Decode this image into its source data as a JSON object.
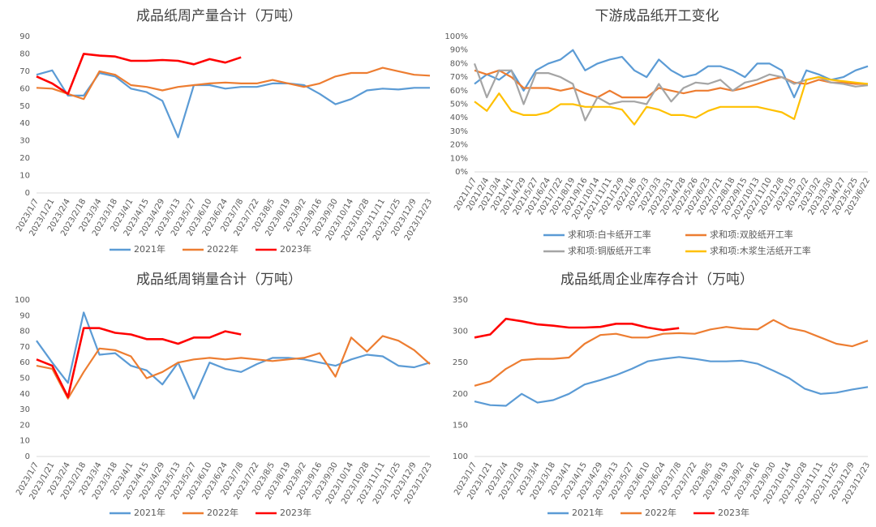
{
  "chart_data": [
    {
      "type": "line",
      "title": "成品纸周产量合计（万吨）",
      "legend": "bottom",
      "grid": false,
      "categories": [
        "2023/1/7",
        "2023/1/21",
        "2023/2/4",
        "2023/2/18",
        "2023/3/4",
        "2023/3/18",
        "2023/4/1",
        "2023/4/15",
        "2023/4/29",
        "2023/5/13",
        "2023/5/27",
        "2023/6/10",
        "2023/6/24",
        "2023/7/8",
        "2023/7/22",
        "2023/8/5",
        "2023/8/19",
        "2023/9/2",
        "2023/9/16",
        "2023/9/30",
        "2023/10/14",
        "2023/10/28",
        "2023/11/11",
        "2023/11/25",
        "2023/12/9",
        "2023/12/23"
      ],
      "ylim": [
        0,
        90
      ],
      "yticks": [
        0,
        10,
        20,
        30,
        40,
        50,
        60,
        70,
        80,
        90
      ],
      "series": [
        {
          "name": "2021年",
          "color": "#5b9bd5",
          "values": [
            68,
            70.5,
            56,
            56,
            69,
            67,
            60,
            58,
            53,
            32,
            62,
            62,
            60,
            61,
            61,
            63,
            63,
            62,
            57,
            51,
            54,
            59,
            60,
            59.5,
            60.5,
            60.5
          ]
        },
        {
          "name": "2022年",
          "color": "#ed7d31",
          "values": [
            60.5,
            60,
            57,
            54,
            70,
            68,
            62,
            61,
            59,
            61,
            62,
            63,
            63.5,
            63,
            63,
            65,
            63,
            61,
            63,
            67,
            69,
            69,
            72,
            70,
            68,
            67.5
          ]
        },
        {
          "name": "2023年",
          "color": "#ff0000",
          "values": [
            67,
            63,
            57,
            80,
            79,
            78.5,
            76,
            76,
            76.5,
            76,
            74,
            77,
            75,
            78,
            null,
            null,
            null,
            null,
            null,
            null,
            null,
            null,
            null,
            null,
            null,
            null
          ]
        }
      ]
    },
    {
      "type": "line",
      "title": "下游成品纸开工变化",
      "legend": "bottom",
      "grid": false,
      "categories": [
        "2021/1/7",
        "2021/2/4",
        "2021/3/4",
        "2021/4/1",
        "2021/4/29",
        "2021/5/27",
        "2021/6/24",
        "2021/7/22",
        "2021/8/19",
        "2021/9/16",
        "2021/10/14",
        "2021/11/11",
        "2021/12/9",
        "2022/1/6",
        "2022/2/3",
        "2022/3/3",
        "2022/3/31",
        "2022/4/28",
        "2022/5/26",
        "2022/6/23",
        "2022/7/21",
        "2022/8/18",
        "2022/9/15",
        "2022/10/13",
        "2022/11/10",
        "2022/12/8",
        "2023/1/5",
        "2023/2/2",
        "2023/3/2",
        "2023/3/30",
        "2023/4/27",
        "2023/5/25",
        "2023/6/22"
      ],
      "ylim": [
        0,
        100
      ],
      "yticks": [
        {
          "value": 0,
          "label": "0%"
        },
        {
          "value": 10,
          "label": "10%"
        },
        {
          "value": 20,
          "label": "20%"
        },
        {
          "value": 30,
          "label": "30%"
        },
        {
          "value": 40,
          "label": "40%"
        },
        {
          "value": 50,
          "label": "50%"
        },
        {
          "value": 60,
          "label": "60%"
        },
        {
          "value": 70,
          "label": "70%"
        },
        {
          "value": 80,
          "label": "80%"
        },
        {
          "value": 90,
          "label": "90%"
        },
        {
          "value": 100,
          "label": "100%"
        }
      ],
      "series": [
        {
          "name": "求和项:白卡纸开工率",
          "color": "#5b9bd5",
          "values": [
            65,
            72,
            68,
            75,
            60,
            75,
            80,
            83,
            90,
            75,
            80,
            83,
            85,
            75,
            70,
            83,
            75,
            70,
            72,
            78,
            78,
            75,
            70,
            80,
            80,
            75,
            55,
            75,
            72,
            68,
            70,
            75,
            78
          ]
        },
        {
          "name": "求和项:双胶纸开工率",
          "color": "#ed7d31",
          "values": [
            75,
            72,
            75,
            70,
            62,
            62,
            62,
            60,
            62,
            58,
            55,
            60,
            55,
            55,
            55,
            62,
            60,
            58,
            60,
            60,
            62,
            60,
            62,
            65,
            68,
            70,
            66,
            65,
            68,
            66,
            66,
            65,
            65
          ]
        },
        {
          "name": "求和项:铜版纸开工率",
          "color": "#a5a5a5",
          "values": [
            80,
            55,
            75,
            75,
            50,
            73,
            73,
            70,
            65,
            38,
            55,
            50,
            52,
            52,
            50,
            65,
            52,
            62,
            66,
            65,
            68,
            60,
            66,
            68,
            72,
            70,
            65,
            68,
            70,
            66,
            65,
            63,
            64
          ]
        },
        {
          "name": "求和项:木浆生活纸开工率",
          "color": "#ffc000",
          "values": [
            52,
            45,
            58,
            45,
            42,
            42,
            44,
            50,
            50,
            48,
            48,
            48,
            46,
            35,
            48,
            46,
            42,
            42,
            40,
            45,
            48,
            48,
            48,
            48,
            46,
            44,
            39,
            68,
            70,
            68,
            67,
            66,
            65
          ]
        }
      ]
    },
    {
      "type": "line",
      "title": "成品纸周销量合计（万吨）",
      "legend": "bottom",
      "grid": false,
      "categories": [
        "2023/1/7",
        "2023/1/21",
        "2023/2/4",
        "2023/2/18",
        "2023/3/4",
        "2023/3/18",
        "2023/4/1",
        "2023/4/15",
        "2023/4/29",
        "2023/5/13",
        "2023/5/27",
        "2023/6/10",
        "2023/6/24",
        "2023/7/8",
        "2023/7/22",
        "2023/8/5",
        "2023/8/19",
        "2023/9/2",
        "2023/9/16",
        "2023/9/30",
        "2023/10/14",
        "2023/10/28",
        "2023/11/11",
        "2023/11/25",
        "2023/12/9",
        "2023/12/23"
      ],
      "ylim": [
        0,
        100
      ],
      "yticks": [
        0,
        10,
        20,
        30,
        40,
        50,
        60,
        70,
        80,
        90,
        100
      ],
      "series": [
        {
          "name": "2021年",
          "color": "#5b9bd5",
          "values": [
            74,
            60,
            47,
            92,
            65,
            66,
            58,
            55,
            46,
            60,
            37,
            60,
            56,
            54,
            59,
            63,
            63,
            62,
            60,
            58,
            62,
            65,
            64,
            58,
            57,
            60
          ]
        },
        {
          "name": "2022年",
          "color": "#ed7d31",
          "values": [
            58,
            56,
            37,
            54,
            69,
            68,
            64,
            50,
            54,
            60,
            62,
            63,
            62,
            63,
            62,
            61,
            62,
            63,
            66,
            51,
            76,
            67,
            77,
            74,
            68,
            59
          ]
        },
        {
          "name": "2023年",
          "color": "#ff0000",
          "values": [
            62,
            58,
            38,
            82,
            82,
            79,
            78,
            75,
            75,
            72,
            76,
            76,
            80,
            78,
            null,
            null,
            null,
            null,
            null,
            null,
            null,
            null,
            null,
            null,
            null,
            null
          ]
        }
      ]
    },
    {
      "type": "line",
      "title": "成品纸周企业库存合计（万吨）",
      "legend": "bottom",
      "grid": false,
      "categories": [
        "2023/1/7",
        "2023/1/21",
        "2023/2/4",
        "2023/2/18",
        "2023/3/4",
        "2023/3/18",
        "2023/4/1",
        "2023/4/15",
        "2023/4/29",
        "2023/5/13",
        "2023/5/27",
        "2023/6/10",
        "2023/6/24",
        "2023/7/8",
        "2023/7/22",
        "2023/8/5",
        "2023/8/19",
        "2023/9/2",
        "2023/9/16",
        "2023/9/30",
        "2023/10/14",
        "2023/10/28",
        "2023/11/11",
        "2023/11/25",
        "2023/12/9",
        "2023/12/23"
      ],
      "ylim": [
        100,
        350
      ],
      "yticks": [
        100,
        150,
        200,
        250,
        300,
        350
      ],
      "series": [
        {
          "name": "2021年",
          "color": "#5b9bd5",
          "values": [
            188,
            182,
            181,
            200,
            186,
            190,
            200,
            215,
            222,
            230,
            240,
            252,
            256,
            259,
            256,
            252,
            252,
            253,
            248,
            237,
            225,
            208,
            200,
            202,
            207,
            211
          ]
        },
        {
          "name": "2022年",
          "color": "#ed7d31",
          "values": [
            213,
            220,
            240,
            254,
            256,
            256,
            258,
            280,
            294,
            296,
            290,
            290,
            296,
            297,
            296,
            303,
            307,
            304,
            303,
            318,
            305,
            300,
            290,
            280,
            276,
            285
          ]
        },
        {
          "name": "2023年",
          "color": "#ff0000",
          "values": [
            290,
            295,
            320,
            316,
            311,
            309,
            306,
            306,
            307,
            312,
            312,
            306,
            302,
            305,
            null,
            null,
            null,
            null,
            null,
            null,
            null,
            null,
            null,
            null,
            null,
            null
          ]
        }
      ]
    }
  ]
}
